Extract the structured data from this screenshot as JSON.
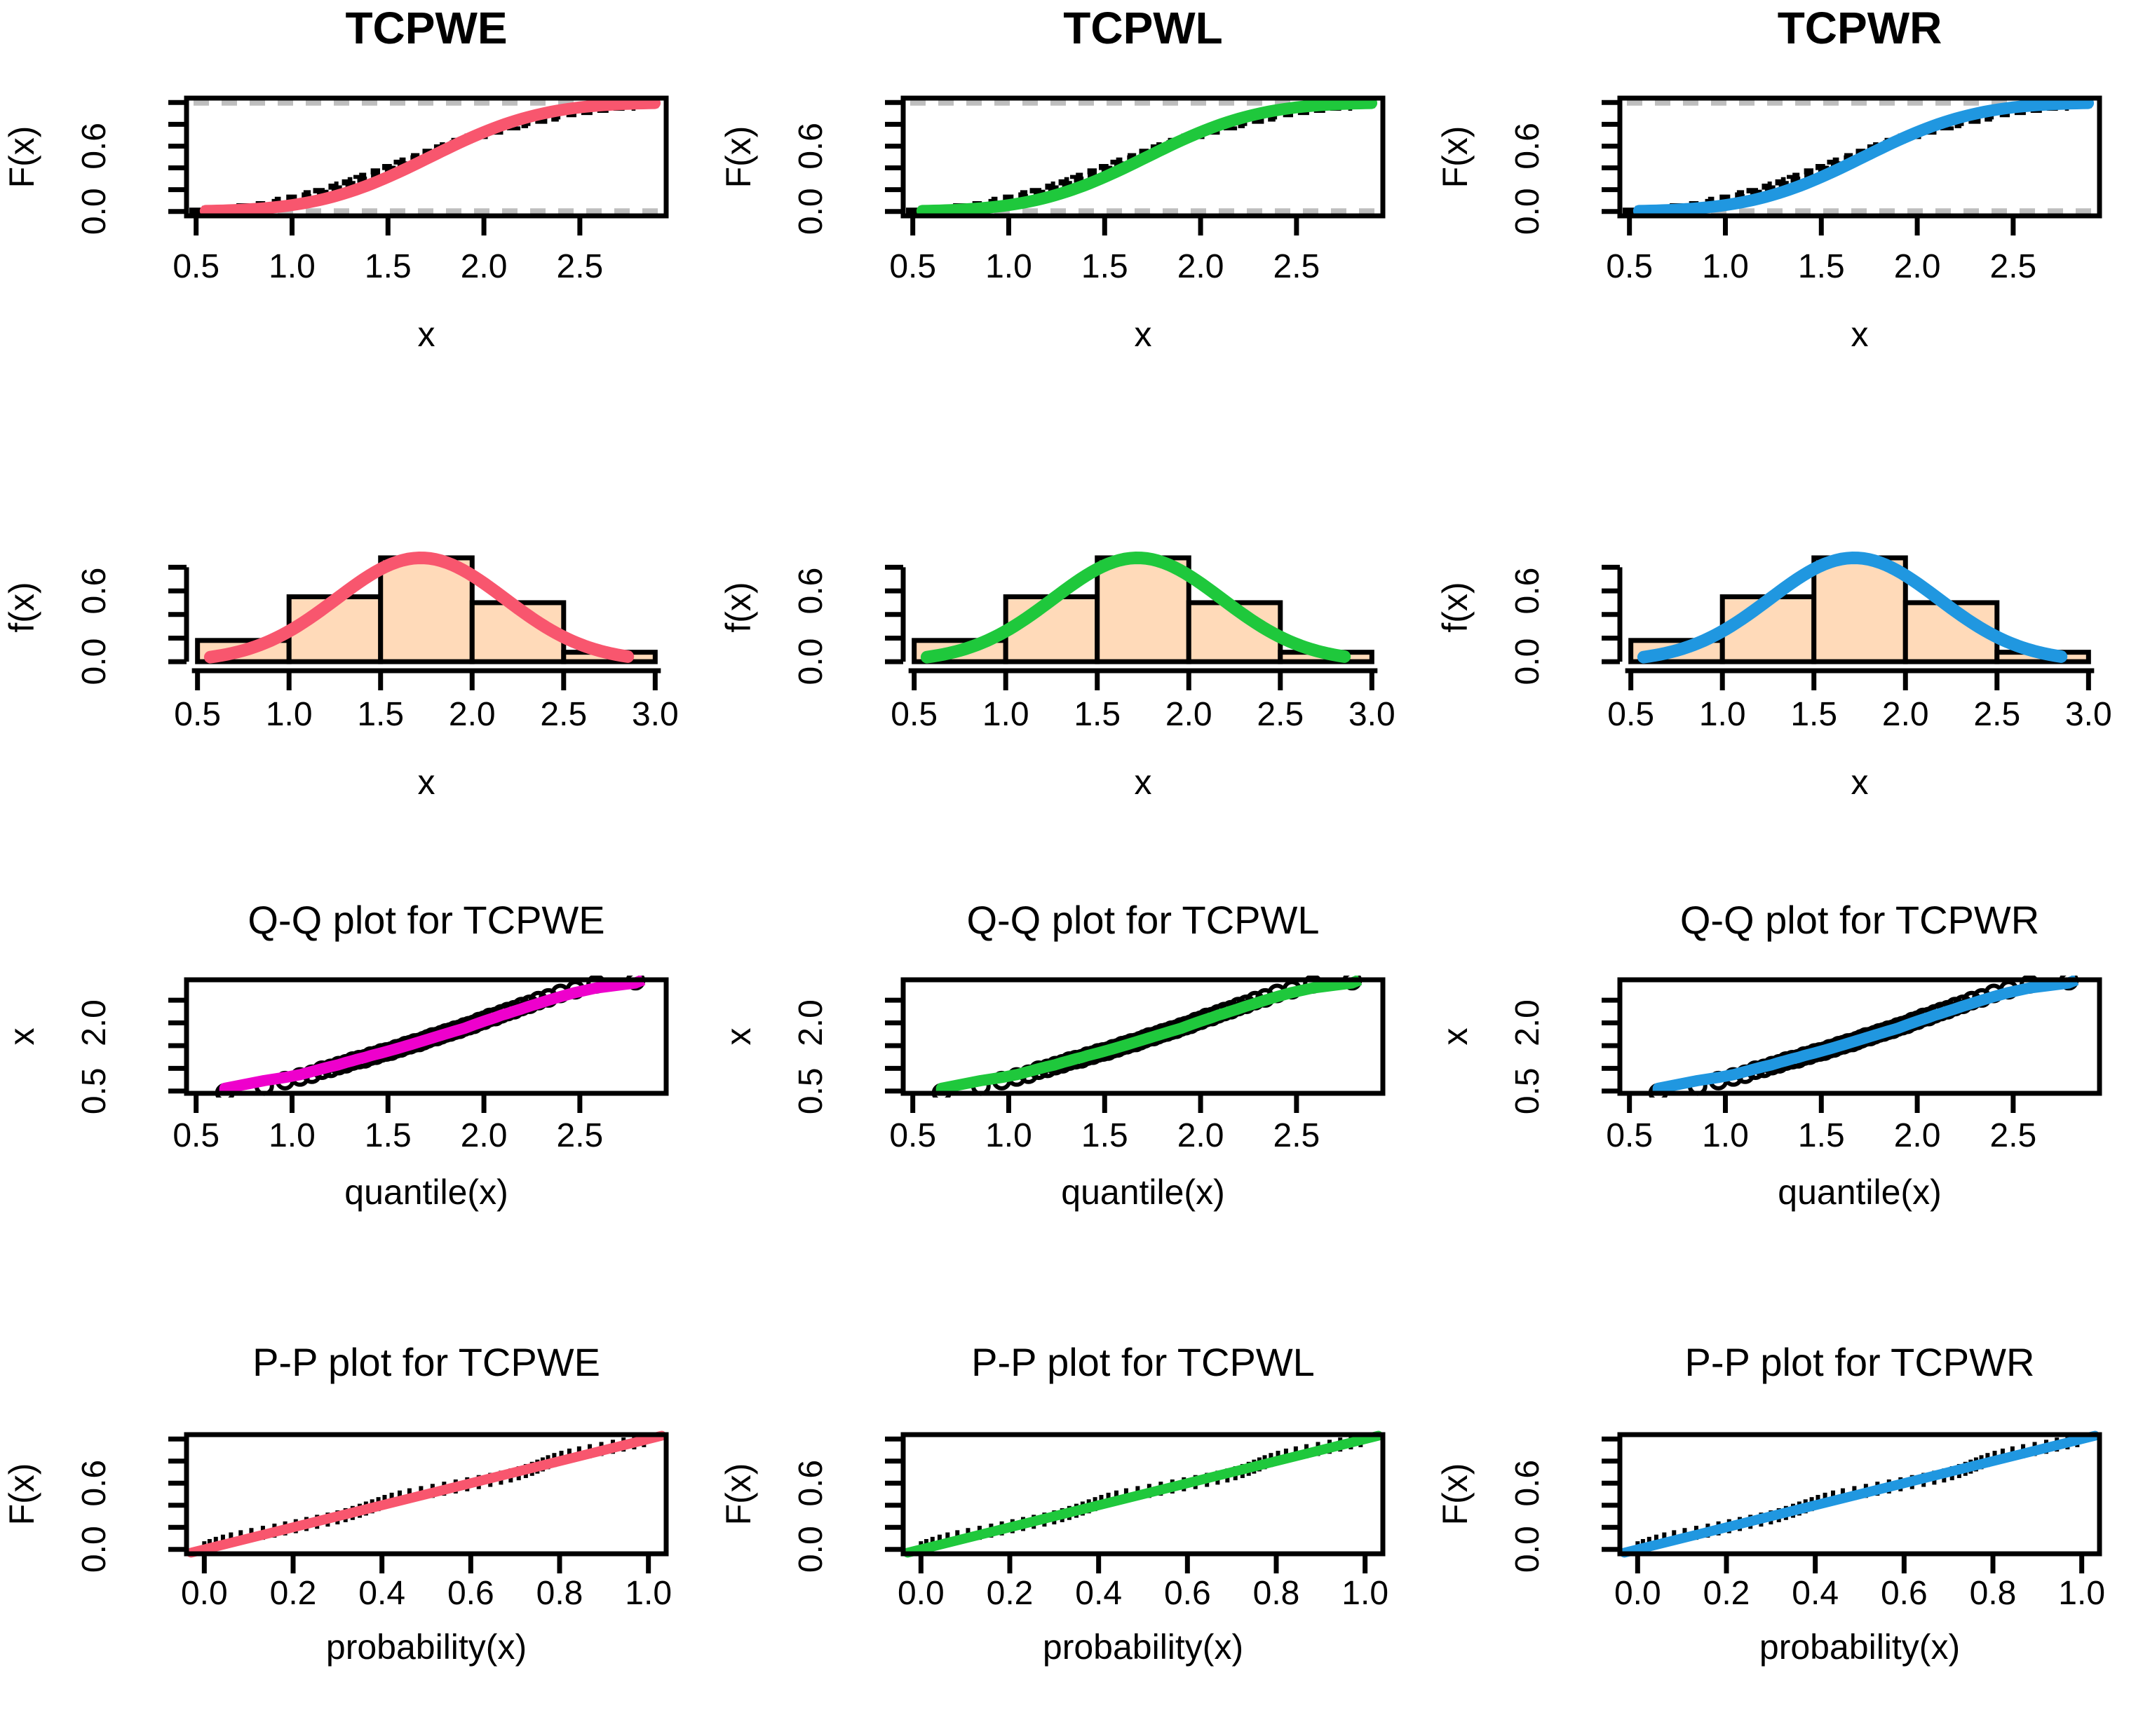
{
  "chart_data": {
    "type": "multi-panel",
    "grid": {
      "rows": 4,
      "cols": 3
    },
    "distributions": [
      "TCPWE",
      "TCPWL",
      "TCPWR"
    ],
    "shared": {
      "colors": {
        "col_accent": [
          "#F8566E",
          "#1FC83C",
          "#2097E0"
        ],
        "qq_accent": [
          "#EE00CC",
          "#1FC83C",
          "#2097E0"
        ],
        "hist_fill": "#FFDAB9",
        "ref_dash_gray": "#BEBEBE",
        "black": "#000000"
      },
      "fit": {
        "mean": 1.72,
        "sd": 0.46
      },
      "sample_sorted": [
        0.56,
        0.73,
        0.8,
        0.86,
        0.93,
        0.99,
        1.04,
        1.08,
        1.13,
        1.17,
        1.21,
        1.24,
        1.28,
        1.31,
        1.34,
        1.37,
        1.4,
        1.43,
        1.46,
        1.49,
        1.52,
        1.55,
        1.58,
        1.61,
        1.64,
        1.67,
        1.7,
        1.73,
        1.76,
        1.79,
        1.82,
        1.85,
        1.88,
        1.92,
        1.96,
        2.0,
        2.04,
        2.08,
        2.12,
        2.17,
        2.21,
        2.26,
        2.31,
        2.37,
        2.43,
        2.5,
        2.58,
        2.67,
        2.77,
        2.88
      ],
      "qq_point_offsets": [
        -0.1,
        -0.12,
        -0.07,
        -0.05,
        -0.06,
        -0.03,
        -0.04,
        -0.02,
        -0.03,
        -0.01,
        -0.02,
        -0.03,
        -0.01,
        -0.02,
        0.0,
        -0.01,
        -0.02,
        0.0,
        -0.01,
        0.01,
        0.0,
        0.01,
        -0.01,
        0.0,
        0.01,
        0.02,
        0.0,
        0.01,
        0.02,
        0.01,
        0.02,
        0.01,
        0.03,
        0.02,
        0.01,
        0.03,
        0.02,
        0.04,
        0.02,
        0.03,
        0.04,
        0.03,
        0.05,
        0.04,
        0.06,
        0.05,
        0.07,
        0.06,
        0.09,
        0.05
      ],
      "pp_wiggle": [
        0.01,
        0.018,
        0.024,
        0.028,
        0.03,
        0.028,
        0.024,
        0.018,
        0.012,
        0.008,
        0.004,
        0.0,
        -0.004,
        -0.008,
        -0.01,
        -0.008,
        -0.004,
        0.0,
        0.006,
        0.012,
        0.018,
        0.024,
        0.028,
        0.03,
        0.028,
        0.022,
        0.016,
        0.01,
        0.004,
        -0.002,
        -0.008,
        -0.014,
        -0.018,
        -0.02,
        -0.018,
        -0.014,
        -0.008,
        0.0,
        0.008,
        0.016,
        0.022,
        0.026,
        0.028,
        0.026,
        0.022,
        0.016,
        0.01,
        0.006,
        0.002,
        0.0
      ]
    },
    "panels": [
      {
        "id": "cdf-TCPWE",
        "kind": "cdf",
        "row": 0,
        "col": 0,
        "type": "line",
        "title": "TCPWE",
        "title_bold": true,
        "xlabel": "x",
        "ylabel": "F(x)",
        "xlim": [
          0.45,
          2.95
        ],
        "ylim": [
          -0.04,
          1.04
        ],
        "xticks": [
          0.5,
          1.0,
          1.5,
          2.0,
          2.5
        ],
        "xtick_labels": [
          "0.5",
          "1.0",
          "1.5",
          "2.0",
          "2.5"
        ],
        "yticks": [
          0,
          0.2,
          0.4,
          0.6,
          0.8,
          1.0
        ],
        "ytick_labels": [
          "0.0",
          "",
          "",
          "0.6",
          "",
          ""
        ],
        "color": "#F8566E",
        "ref_lines_y": [
          0,
          1
        ]
      },
      {
        "id": "cdf-TCPWL",
        "kind": "cdf",
        "row": 0,
        "col": 1,
        "type": "line",
        "title": "TCPWL",
        "title_bold": true,
        "xlabel": "x",
        "ylabel": "F(x)",
        "xlim": [
          0.45,
          2.95
        ],
        "ylim": [
          -0.04,
          1.04
        ],
        "xticks": [
          0.5,
          1.0,
          1.5,
          2.0,
          2.5
        ],
        "xtick_labels": [
          "0.5",
          "1.0",
          "1.5",
          "2.0",
          "2.5"
        ],
        "yticks": [
          0,
          0.2,
          0.4,
          0.6,
          0.8,
          1.0
        ],
        "ytick_labels": [
          "0.0",
          "",
          "",
          "0.6",
          "",
          ""
        ],
        "color": "#1FC83C",
        "ref_lines_y": [
          0,
          1
        ]
      },
      {
        "id": "cdf-TCPWR",
        "kind": "cdf",
        "row": 0,
        "col": 2,
        "type": "line",
        "title": "TCPWR",
        "title_bold": true,
        "xlabel": "x",
        "ylabel": "F(x)",
        "xlim": [
          0.45,
          2.95
        ],
        "ylim": [
          -0.04,
          1.04
        ],
        "xticks": [
          0.5,
          1.0,
          1.5,
          2.0,
          2.5
        ],
        "xtick_labels": [
          "0.5",
          "1.0",
          "1.5",
          "2.0",
          "2.5"
        ],
        "yticks": [
          0,
          0.2,
          0.4,
          0.6,
          0.8,
          1.0
        ],
        "ytick_labels": [
          "0.0",
          "",
          "",
          "0.6",
          "",
          ""
        ],
        "color": "#2097E0",
        "ref_lines_y": [
          0,
          1
        ]
      },
      {
        "id": "density-TCPWE",
        "kind": "density",
        "row": 1,
        "col": 0,
        "type": "bar",
        "title": "",
        "xlabel": "x",
        "ylabel": "f(x)",
        "xlim": [
          0.44,
          3.06
        ],
        "ylim": [
          -0.035,
          0.957
        ],
        "xticks": [
          0.5,
          1.0,
          1.5,
          2.0,
          2.5,
          3.0
        ],
        "xtick_labels": [
          "0.5",
          "1.0",
          "1.5",
          "2.0",
          "2.5",
          "3.0"
        ],
        "yticks": [
          0,
          0.2,
          0.4,
          0.6,
          0.8
        ],
        "ytick_labels": [
          "0.0",
          "",
          "",
          "0.6",
          ""
        ],
        "bins": [
          0.5,
          1.0,
          1.5,
          2.0,
          2.5,
          3.0
        ],
        "bar_heights": [
          0.18,
          0.55,
          0.88,
          0.5,
          0.08
        ],
        "bar_fill": "#FFDAB9",
        "curve_peak": 0.88,
        "color": "#F8566E"
      },
      {
        "id": "density-TCPWL",
        "kind": "density",
        "row": 1,
        "col": 1,
        "type": "bar",
        "title": "",
        "xlabel": "x",
        "ylabel": "f(x)",
        "xlim": [
          0.44,
          3.06
        ],
        "ylim": [
          -0.035,
          0.957
        ],
        "xticks": [
          0.5,
          1.0,
          1.5,
          2.0,
          2.5,
          3.0
        ],
        "xtick_labels": [
          "0.5",
          "1.0",
          "1.5",
          "2.0",
          "2.5",
          "3.0"
        ],
        "yticks": [
          0,
          0.2,
          0.4,
          0.6,
          0.8
        ],
        "ytick_labels": [
          "0.0",
          "",
          "",
          "0.6",
          ""
        ],
        "bins": [
          0.5,
          1.0,
          1.5,
          2.0,
          2.5,
          3.0
        ],
        "bar_heights": [
          0.18,
          0.55,
          0.88,
          0.5,
          0.08
        ],
        "bar_fill": "#FFDAB9",
        "curve_peak": 0.88,
        "color": "#1FC83C"
      },
      {
        "id": "density-TCPWR",
        "kind": "density",
        "row": 1,
        "col": 2,
        "type": "bar",
        "title": "",
        "xlabel": "x",
        "ylabel": "f(x)",
        "xlim": [
          0.44,
          3.06
        ],
        "ylim": [
          -0.035,
          0.957
        ],
        "xticks": [
          0.5,
          1.0,
          1.5,
          2.0,
          2.5,
          3.0
        ],
        "xtick_labels": [
          "0.5",
          "1.0",
          "1.5",
          "2.0",
          "2.5",
          "3.0"
        ],
        "yticks": [
          0,
          0.2,
          0.4,
          0.6,
          0.8
        ],
        "ytick_labels": [
          "0.0",
          "",
          "",
          "0.6",
          ""
        ],
        "bins": [
          0.5,
          1.0,
          1.5,
          2.0,
          2.5,
          3.0
        ],
        "bar_heights": [
          0.18,
          0.55,
          0.88,
          0.5,
          0.08
        ],
        "bar_fill": "#FFDAB9",
        "curve_peak": 0.88,
        "color": "#2097E0"
      },
      {
        "id": "qq-TCPWE",
        "kind": "qq",
        "row": 2,
        "col": 0,
        "type": "scatter",
        "title": "Q-Q plot for  TCPWE",
        "xlabel": "quantile(x)",
        "ylabel": "x",
        "xlim": [
          0.45,
          2.95
        ],
        "ylim": [
          0.45,
          2.95
        ],
        "xticks": [
          0.5,
          1.0,
          1.5,
          2.0,
          2.5
        ],
        "xtick_labels": [
          "0.5",
          "1.0",
          "1.5",
          "2.0",
          "2.5"
        ],
        "yticks": [
          0.5,
          1.0,
          1.5,
          2.0,
          2.5
        ],
        "ytick_labels": [
          "0.5",
          "",
          "",
          "2.0",
          ""
        ],
        "color": "#EE00CC"
      },
      {
        "id": "qq-TCPWL",
        "kind": "qq",
        "row": 2,
        "col": 1,
        "type": "scatter",
        "title": "Q-Q plot for  TCPWL",
        "xlabel": "quantile(x)",
        "ylabel": "x",
        "xlim": [
          0.45,
          2.95
        ],
        "ylim": [
          0.45,
          2.95
        ],
        "xticks": [
          0.5,
          1.0,
          1.5,
          2.0,
          2.5
        ],
        "xtick_labels": [
          "0.5",
          "1.0",
          "1.5",
          "2.0",
          "2.5"
        ],
        "yticks": [
          0.5,
          1.0,
          1.5,
          2.0,
          2.5
        ],
        "ytick_labels": [
          "0.5",
          "",
          "",
          "2.0",
          ""
        ],
        "color": "#1FC83C"
      },
      {
        "id": "qq-TCPWR",
        "kind": "qq",
        "row": 2,
        "col": 2,
        "type": "scatter",
        "title": "Q-Q plot for  TCPWR",
        "xlabel": "quantile(x)",
        "ylabel": "x",
        "xlim": [
          0.45,
          2.95
        ],
        "ylim": [
          0.45,
          2.95
        ],
        "xticks": [
          0.5,
          1.0,
          1.5,
          2.0,
          2.5
        ],
        "xtick_labels": [
          "0.5",
          "1.0",
          "1.5",
          "2.0",
          "2.5"
        ],
        "yticks": [
          0.5,
          1.0,
          1.5,
          2.0,
          2.5
        ],
        "ytick_labels": [
          "0.5",
          "",
          "",
          "2.0",
          ""
        ],
        "color": "#2097E0"
      },
      {
        "id": "pp-TCPWE",
        "kind": "pp",
        "row": 3,
        "col": 0,
        "type": "scatter",
        "title": "P-P plot for  TCPWE",
        "xlabel": "probability(x)",
        "ylabel": "F(x)",
        "xlim": [
          -0.04,
          1.04
        ],
        "ylim": [
          -0.04,
          1.04
        ],
        "xticks": [
          0,
          0.2,
          0.4,
          0.6,
          0.8,
          1.0
        ],
        "xtick_labels": [
          "0.0",
          "0.2",
          "0.4",
          "0.6",
          "0.8",
          "1.0"
        ],
        "yticks": [
          0,
          0.2,
          0.4,
          0.6,
          0.8,
          1.0
        ],
        "ytick_labels": [
          "0.0",
          "",
          "",
          "0.6",
          "",
          ""
        ],
        "color": "#F8566E"
      },
      {
        "id": "pp-TCPWL",
        "kind": "pp",
        "row": 3,
        "col": 1,
        "type": "scatter",
        "title": "P-P plot for  TCPWL",
        "xlabel": "probability(x)",
        "ylabel": "F(x)",
        "xlim": [
          -0.04,
          1.04
        ],
        "ylim": [
          -0.04,
          1.04
        ],
        "xticks": [
          0,
          0.2,
          0.4,
          0.6,
          0.8,
          1.0
        ],
        "xtick_labels": [
          "0.0",
          "0.2",
          "0.4",
          "0.6",
          "0.8",
          "1.0"
        ],
        "yticks": [
          0,
          0.2,
          0.4,
          0.6,
          0.8,
          1.0
        ],
        "ytick_labels": [
          "0.0",
          "",
          "",
          "0.6",
          "",
          ""
        ],
        "color": "#1FC83C"
      },
      {
        "id": "pp-TCPWR",
        "kind": "pp",
        "row": 3,
        "col": 2,
        "type": "scatter",
        "title": "P-P plot for  TCPWR",
        "xlabel": "probability(x)",
        "ylabel": "F(x)",
        "xlim": [
          -0.04,
          1.04
        ],
        "ylim": [
          -0.04,
          1.04
        ],
        "xticks": [
          0,
          0.2,
          0.4,
          0.6,
          0.8,
          1.0
        ],
        "xtick_labels": [
          "0.0",
          "0.2",
          "0.4",
          "0.6",
          "0.8",
          "1.0"
        ],
        "yticks": [
          0,
          0.2,
          0.4,
          0.6,
          0.8,
          1.0
        ],
        "ytick_labels": [
          "0.0",
          "",
          "",
          "0.6",
          "",
          ""
        ],
        "color": "#2097E0"
      }
    ]
  }
}
